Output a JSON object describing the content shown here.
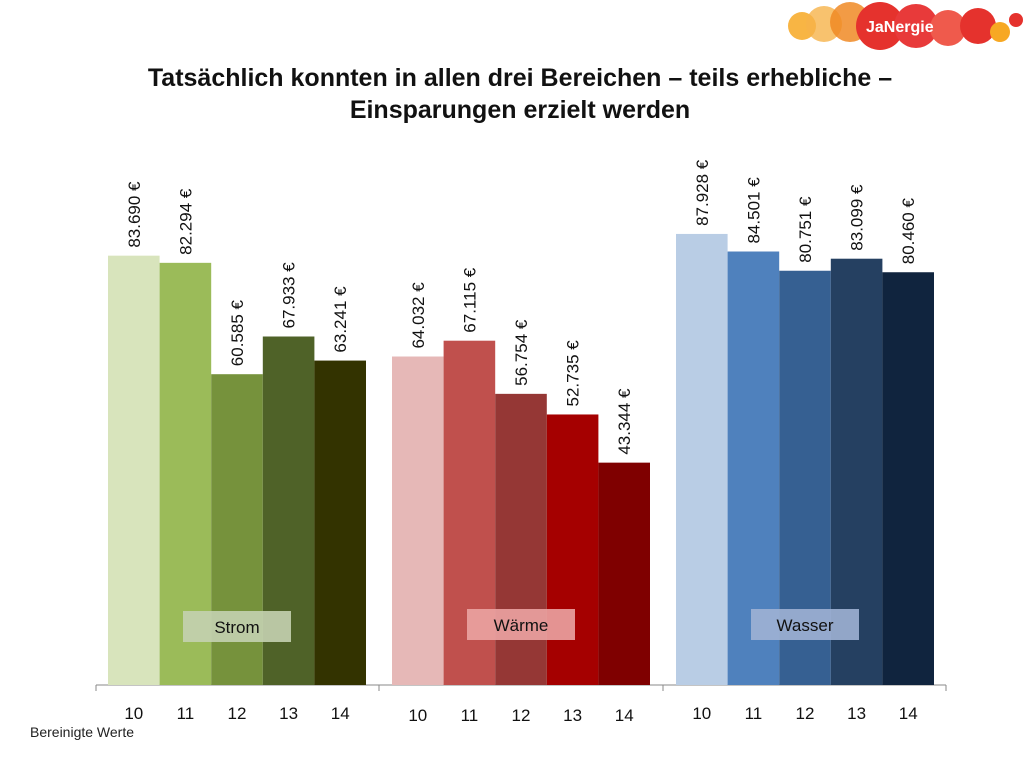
{
  "logo": {
    "text": "JaNergie"
  },
  "title": {
    "line1": "Tatsächlich konnten in allen drei Bereichen – teils erhebliche –",
    "line2": "Einsparungen erzielt werden"
  },
  "footnote": "Bereinigte Werte",
  "chart_data": {
    "type": "bar",
    "title": "Tatsächlich konnten in allen drei Bereichen – teils erhebliche – Einsparungen erzielt werden",
    "ylim": [
      0,
      100000
    ],
    "grid": false,
    "legend": "none",
    "groups": [
      {
        "name": "Strom",
        "categories": [
          "10",
          "11",
          "12",
          "13",
          "14"
        ],
        "values": [
          83690,
          82294,
          60585,
          67933,
          63241
        ],
        "labels": [
          "83.690 €",
          "82.294 €",
          "60.585 €",
          "67.933 €",
          "63.241 €"
        ],
        "colors": [
          "#d8e4bc",
          "#9bbb59",
          "#76923c",
          "#4f6228",
          "#333300"
        ],
        "label_bg": "#c4d2b0"
      },
      {
        "name": "Wärme",
        "categories": [
          "10",
          "11",
          "12",
          "13",
          "14"
        ],
        "values": [
          64032,
          67115,
          56754,
          52735,
          43344
        ],
        "labels": [
          "64.032 €",
          "67.115 €",
          "56.754 €",
          "52.735 €",
          "43.344 €"
        ],
        "colors": [
          "#e6b8b7",
          "#c0504d",
          "#953735",
          "#a50000",
          "#7f0000"
        ],
        "label_bg": "#eba3a2"
      },
      {
        "name": "Wasser",
        "categories": [
          "10",
          "11",
          "12",
          "13",
          "14"
        ],
        "values": [
          87928,
          84501,
          80751,
          83099,
          80460
        ],
        "labels": [
          "87.928 €",
          "84.501 €",
          "80.751 €",
          "83.099 €",
          "80.460 €"
        ],
        "colors": [
          "#b9cde5",
          "#4f81bd",
          "#366092",
          "#254061",
          "#10243e"
        ],
        "label_bg": "#9fb1d4"
      }
    ]
  }
}
